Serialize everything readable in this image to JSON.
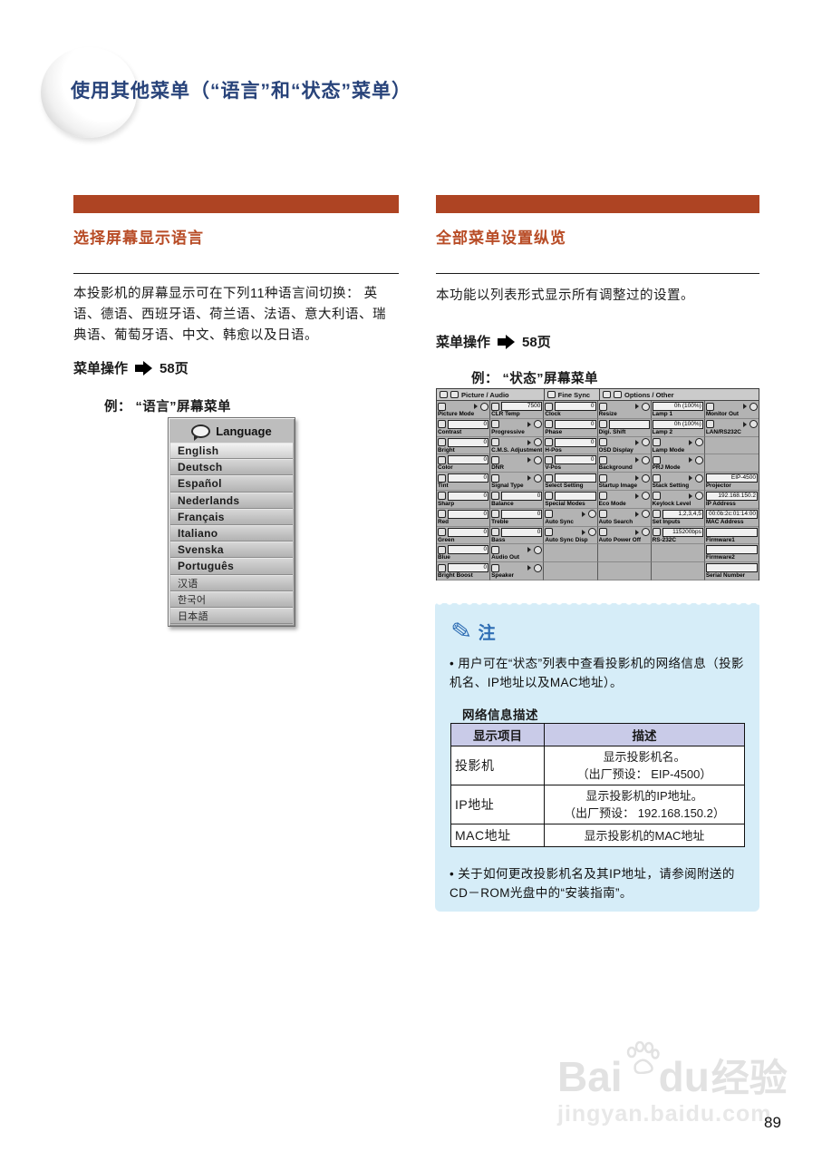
{
  "page": {
    "title": "使用其他菜单（“语言”和“状态”菜单）",
    "number": "89"
  },
  "left_section": {
    "heading": "选择屏幕显示语言",
    "body": "本投影机的屏幕显示可在下列11种语言间切换： 英语、德语、西班牙语、荷兰语、法语、意大利语、瑞典语、葡萄牙语、中文、韩愈以及日语。",
    "menu_op_label": "菜单操作",
    "menu_op_page": "58页",
    "example_label": "例： “语言”屏幕菜单"
  },
  "language_menu": {
    "title": "Language",
    "items": [
      {
        "label": "English",
        "selected": true,
        "cjk": false
      },
      {
        "label": "Deutsch",
        "selected": false,
        "cjk": false
      },
      {
        "label": "Español",
        "selected": false,
        "cjk": false
      },
      {
        "label": "Nederlands",
        "selected": false,
        "cjk": false
      },
      {
        "label": "Français",
        "selected": false,
        "cjk": false
      },
      {
        "label": "Italiano",
        "selected": false,
        "cjk": false
      },
      {
        "label": "Svenska",
        "selected": false,
        "cjk": false
      },
      {
        "label": "Português",
        "selected": false,
        "cjk": false
      },
      {
        "label": "汉语",
        "selected": false,
        "cjk": true
      },
      {
        "label": "한국어",
        "selected": false,
        "cjk": true
      },
      {
        "label": "日本語",
        "selected": false,
        "cjk": true
      }
    ]
  },
  "right_section": {
    "heading": "全部菜单设置纵览",
    "body": "本功能以列表形式显示所有调整过的设置。",
    "menu_op_label": "菜单操作",
    "menu_op_page": "58页",
    "example_label": "例： “状态”屏幕菜单"
  },
  "status_menu": {
    "headers": [
      {
        "text": "Picture  /  Audio",
        "span": 2,
        "icons": [
          "picture-icon",
          "audio-icon"
        ]
      },
      {
        "text": "Fine Sync",
        "span": 1,
        "icons": [
          "fine-sync-icon"
        ]
      },
      {
        "text": "Options  /  Other",
        "span": 3,
        "icons": [
          "options-icon",
          "options2-icon"
        ]
      }
    ],
    "rows": [
      [
        {
          "l": "Picture Mode",
          "t": "g"
        },
        {
          "l": "CLR Temp",
          "t": "bi",
          "v": "7500"
        },
        {
          "l": "Clock",
          "t": "n",
          "v": "0"
        },
        {
          "l": "Resize",
          "t": "g"
        },
        {
          "l": "Lamp 1",
          "t": "b",
          "v": "0h (100%)"
        },
        {
          "l": "Monitor Out",
          "t": "g"
        }
      ],
      [
        {
          "l": "Contrast",
          "t": "n",
          "v": "0"
        },
        {
          "l": "Progressive",
          "t": "g"
        },
        {
          "l": "Phase",
          "t": "n",
          "v": "0"
        },
        {
          "l": "Digi. Shift",
          "t": "bi",
          "v": ""
        },
        {
          "l": "Lamp 2",
          "t": "b",
          "v": "0h (100%)"
        },
        {
          "l": "LAN/RS232C",
          "t": "g"
        }
      ],
      [
        {
          "l": "Bright",
          "t": "n",
          "v": "0"
        },
        {
          "l": "C.M.S. Adjustment",
          "t": "g"
        },
        {
          "l": "H-Pos",
          "t": "n",
          "v": "0"
        },
        {
          "l": "OSD Display",
          "t": "g"
        },
        {
          "l": "Lamp Mode",
          "t": "g"
        },
        {
          "t": "e"
        }
      ],
      [
        {
          "l": "Color",
          "t": "n",
          "v": "0"
        },
        {
          "l": "DNR",
          "t": "g"
        },
        {
          "l": "V-Pos",
          "t": "n",
          "v": "0"
        },
        {
          "l": "Background",
          "t": "g"
        },
        {
          "l": "PRJ Mode",
          "t": "g"
        },
        {
          "t": "e"
        }
      ],
      [
        {
          "l": "Tint",
          "t": "n",
          "v": "0"
        },
        {
          "l": "Signal Type",
          "t": "g"
        },
        {
          "l": "Select Setting",
          "t": "bi",
          "v": ""
        },
        {
          "l": "Startup Image",
          "t": "g"
        },
        {
          "l": "Stack Setting",
          "t": "g"
        },
        {
          "l": "Projector",
          "t": "b",
          "v": "EIP-4500"
        }
      ],
      [
        {
          "l": "Sharp",
          "t": "n",
          "v": "0"
        },
        {
          "l": "Balance",
          "t": "n",
          "v": "0"
        },
        {
          "l": "Special Modes",
          "t": "bi",
          "v": ""
        },
        {
          "l": "Eco Mode",
          "t": "g"
        },
        {
          "l": "Keylock Level",
          "t": "g"
        },
        {
          "l": "IP Address",
          "t": "b",
          "v": "192.168.150.2"
        }
      ],
      [
        {
          "l": "Red",
          "t": "n",
          "v": "0"
        },
        {
          "l": "Treble",
          "t": "n",
          "v": "0"
        },
        {
          "l": "Auto Sync",
          "t": "g"
        },
        {
          "l": "Auto Search",
          "t": "g"
        },
        {
          "l": "Set Inputs",
          "t": "bi",
          "v": "1,2,3,4,5"
        },
        {
          "l": "MAC Address",
          "t": "b",
          "v": "00:0b:2c:01:14:00"
        }
      ],
      [
        {
          "l": "Green",
          "t": "n",
          "v": "0"
        },
        {
          "l": "Bass",
          "t": "n",
          "v": "0"
        },
        {
          "l": "Auto Sync Disp",
          "t": "g"
        },
        {
          "l": "Auto Power Off",
          "t": "g"
        },
        {
          "l": "RS-232C",
          "t": "bi",
          "v": "115200bps"
        },
        {
          "l": "Firmware1",
          "t": "b",
          "v": ""
        }
      ],
      [
        {
          "l": "Blue",
          "t": "n",
          "v": "0"
        },
        {
          "l": "Audio Out",
          "t": "g"
        },
        {
          "t": "e"
        },
        {
          "t": "e"
        },
        {
          "t": "e"
        },
        {
          "l": "Firmware2",
          "t": "b",
          "v": ""
        }
      ],
      [
        {
          "l": "Bright Boost",
          "t": "n",
          "v": "0"
        },
        {
          "l": "Speaker",
          "t": "g"
        },
        {
          "t": "e"
        },
        {
          "t": "e"
        },
        {
          "t": "e"
        },
        {
          "l": "Serial Number",
          "t": "b",
          "v": ""
        }
      ]
    ]
  },
  "note": {
    "title": "注",
    "bullet1": "用户可在“状态”列表中查看投影机的网络信息（投影机名、IP地址以及MAC地址）。",
    "table_caption": "网络信息描述",
    "table": {
      "headers": [
        "显示项目",
        "描述"
      ],
      "rows": [
        {
          "item": "投影机",
          "desc_lines": [
            "显示投影机名。",
            "（出厂预设： EIP-4500）"
          ]
        },
        {
          "item": "IP地址",
          "desc_lines": [
            "显示投影机的IP地址。",
            "（出厂预设： 192.168.150.2）"
          ]
        },
        {
          "item": "MAC地址",
          "desc_lines": [
            "显示投影机的MAC地址"
          ]
        }
      ]
    },
    "bullet2": "关于如何更改投影机名及其IP地址，请参阅附送的CD－ROM光盘中的“安装指南”。"
  },
  "watermark": {
    "brand_left": "Bai",
    "brand_right": "du",
    "brand_cn": "经验",
    "domain": "jingyan.baidu.com"
  },
  "colors": {
    "accent_orange": "#ae4423",
    "heading_orange": "#b84c26",
    "title_navy": "#28437a",
    "note_blue_bg": "#d6edf8",
    "note_blue_text": "#2e6db4",
    "table_header_bg": "#c9cbe8"
  }
}
